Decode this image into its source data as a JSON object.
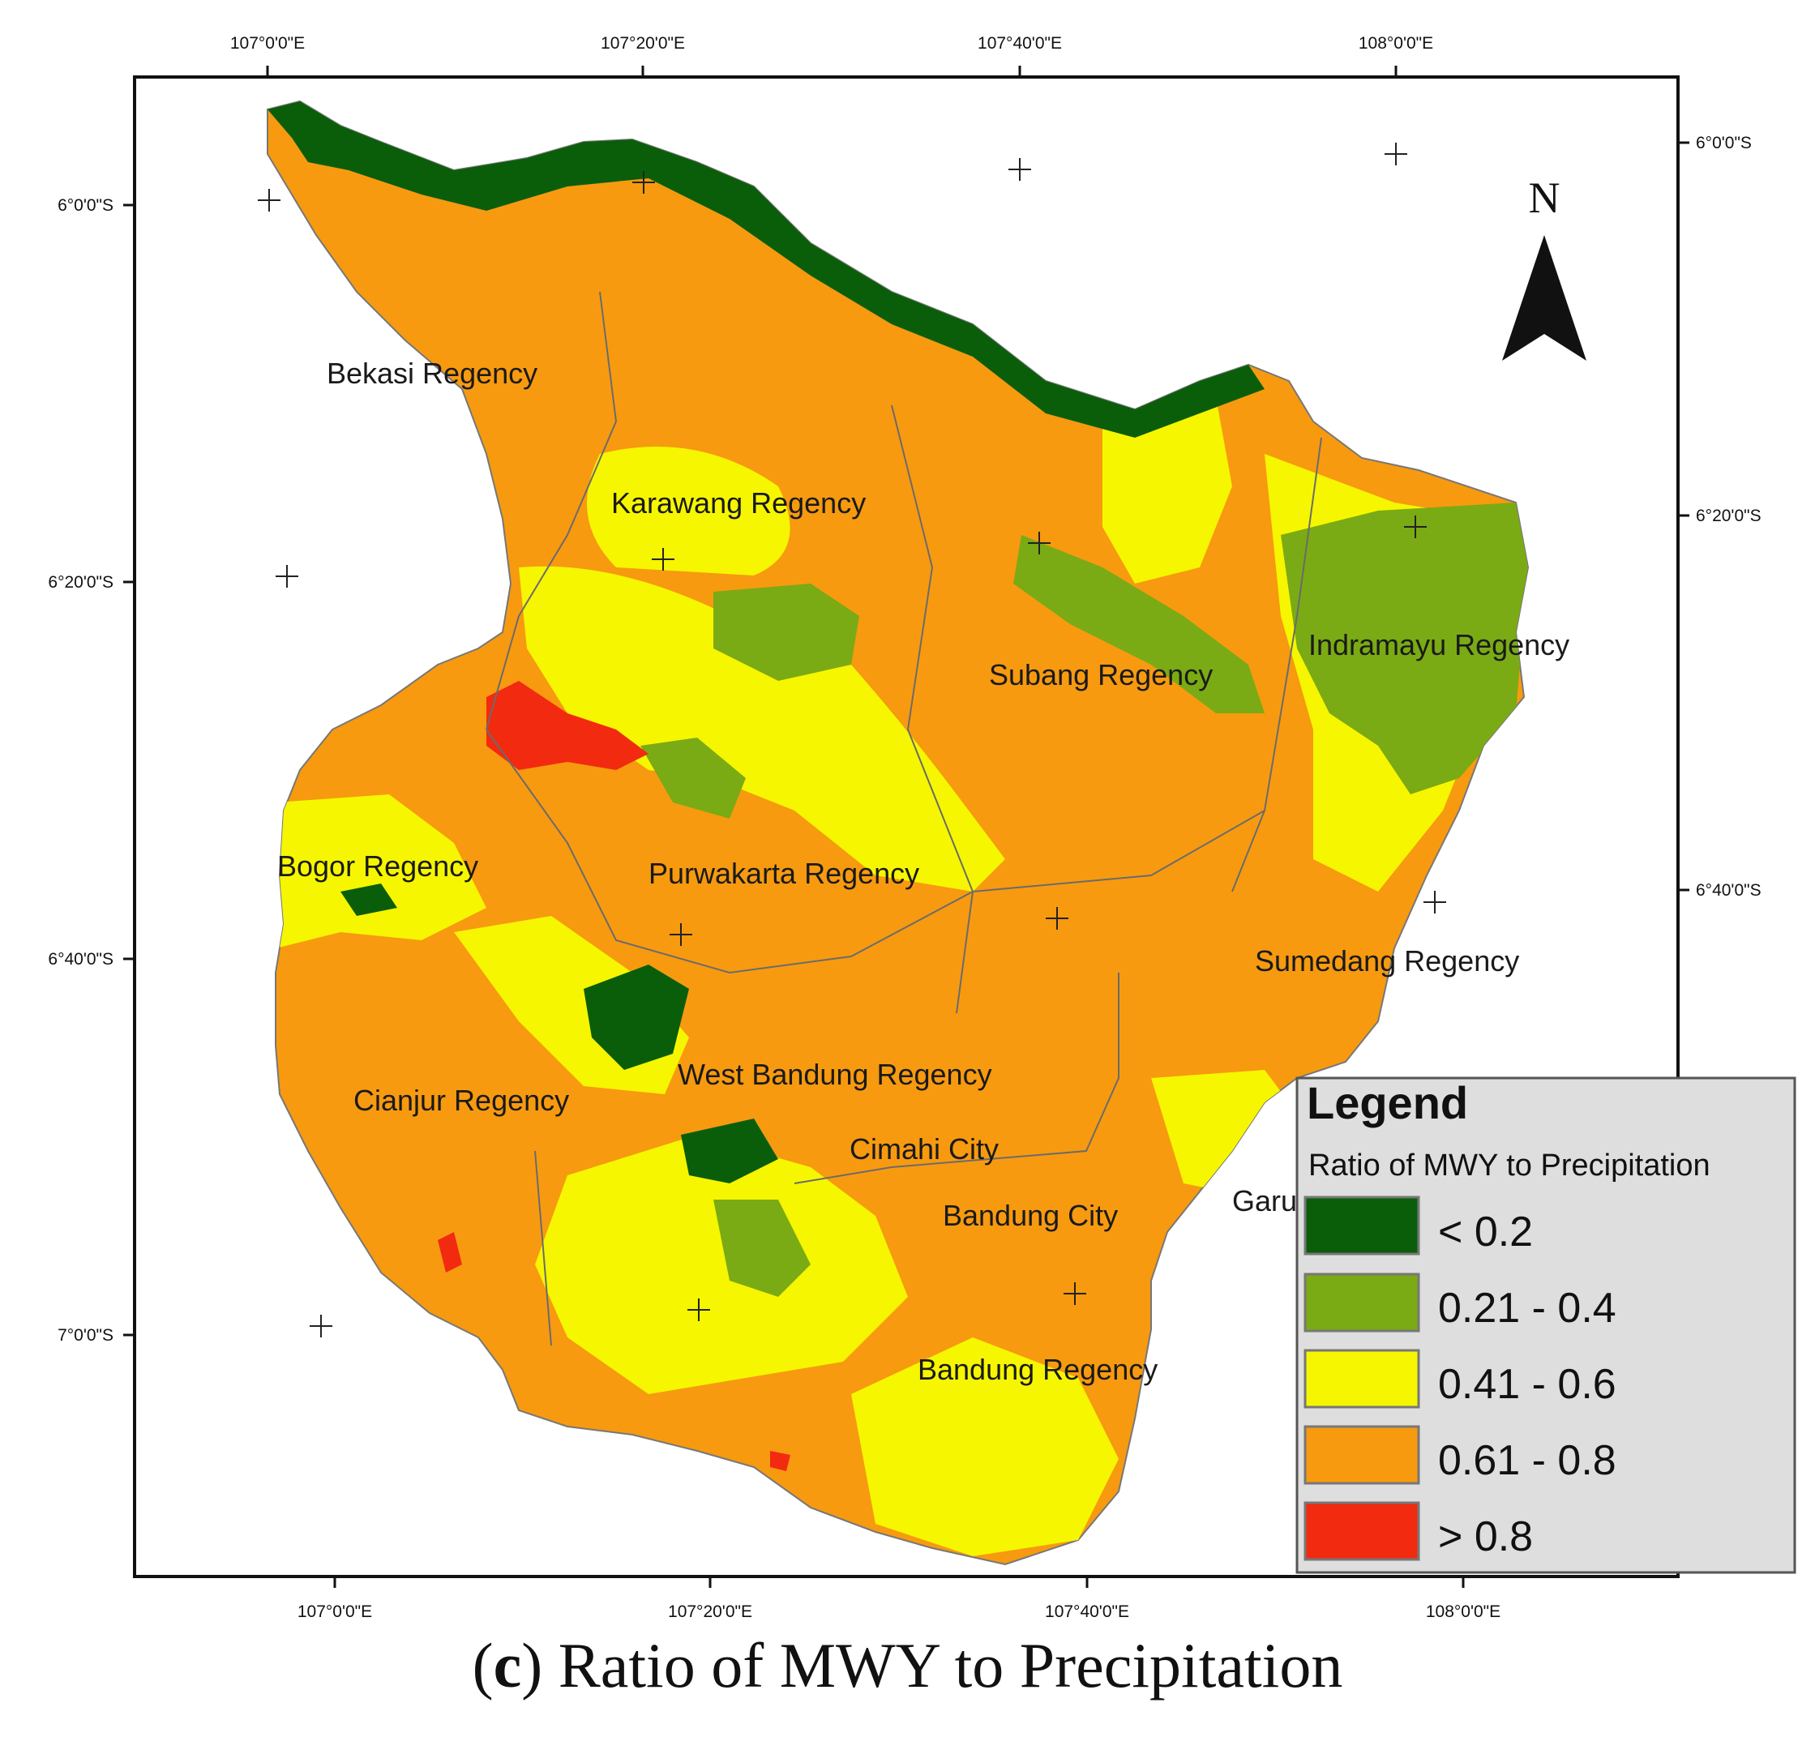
{
  "caption": {
    "letter": "c",
    "text": "Ratio of MWY to Precipitation"
  },
  "axes": {
    "top": [
      "107°0'0\"E",
      "107°20'0\"E",
      "107°40'0\"E",
      "108°0'0\"E"
    ],
    "bottom": [
      "107°0'0\"E",
      "107°20'0\"E",
      "107°40'0\"E",
      "108°0'0\"E"
    ],
    "left": [
      "6°0'0\"S",
      "6°20'0\"S",
      "6°40'0\"S",
      "7°0'0\"S"
    ],
    "right": [
      "6°0'0\"S",
      "6°20'0\"S",
      "6°40'0\"S"
    ]
  },
  "north_label": "N",
  "regions": [
    "Bekasi Regency",
    "Karawang Regency",
    "Subang Regency",
    "Indramayu Regency",
    "Bogor Regency",
    "Purwakarta Regency",
    "Sumedang Regency",
    "West Bandung Regency",
    "Cianjur Regency",
    "Cimahi City",
    "Bandung City",
    "Garut Regency",
    "Bandung Regency"
  ],
  "legend": {
    "title": "Legend",
    "subtitle": "Ratio of MWY to Precipitation",
    "items": [
      {
        "label": "< 0.2",
        "color": "#0a5e0a"
      },
      {
        "label": "0.21 - 0.4",
        "color": "#7aab14"
      },
      {
        "label": "0.41 - 0.6",
        "color": "#f6f600"
      },
      {
        "label": "0.61 - 0.8",
        "color": "#f79a10"
      },
      {
        "label": "> 0.8",
        "color": "#f22a10"
      }
    ]
  }
}
